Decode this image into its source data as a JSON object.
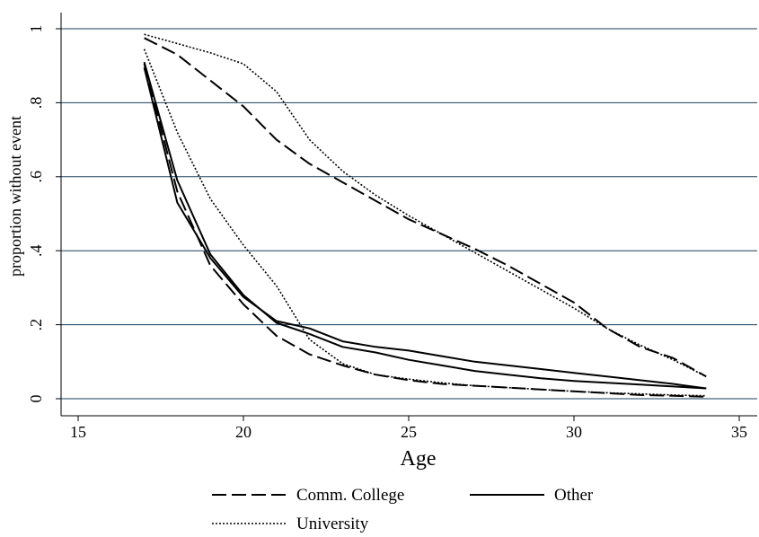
{
  "chart_data": {
    "type": "line",
    "title": "",
    "xlabel": "Age",
    "ylabel": "proportion without event",
    "xlim": [
      15,
      35
    ],
    "ylim": [
      0,
      1
    ],
    "xticks": [
      15,
      20,
      25,
      30,
      35
    ],
    "yticks": [
      0,
      0.2,
      0.4,
      0.6,
      0.8,
      1
    ],
    "xtick_labels": [
      "15",
      "20",
      "25",
      "30",
      "35"
    ],
    "ytick_labels": [
      "0",
      ".2",
      ".4",
      ".6",
      ".8",
      "1"
    ],
    "grid": "horizontal",
    "legend_position": "bottom",
    "series": [
      {
        "name": "Comm. College",
        "style": "dashed",
        "x": [
          17,
          18,
          19,
          20,
          21,
          22,
          23,
          24,
          25,
          26,
          27,
          28,
          29,
          30,
          31,
          32,
          33,
          34
        ],
        "values": [
          0.975,
          0.93,
          0.86,
          0.79,
          0.7,
          0.635,
          0.585,
          0.535,
          0.485,
          0.445,
          0.405,
          0.36,
          0.31,
          0.26,
          0.19,
          0.14,
          0.11,
          0.06
        ]
      },
      {
        "name": "Comm. College",
        "style": "dashed",
        "x": [
          17,
          18,
          19,
          20,
          21,
          22,
          23,
          24,
          25,
          26,
          27,
          28,
          29,
          30,
          31,
          32,
          33,
          34
        ],
        "values": [
          0.905,
          0.56,
          0.36,
          0.255,
          0.17,
          0.12,
          0.09,
          0.065,
          0.05,
          0.04,
          0.035,
          0.03,
          0.025,
          0.02,
          0.015,
          0.01,
          0.008,
          0.005
        ]
      },
      {
        "name": "Other",
        "style": "solid",
        "x": [
          17,
          18,
          19,
          20,
          21,
          22,
          23,
          24,
          25,
          26,
          27,
          28,
          29,
          30,
          31,
          32,
          33,
          34
        ],
        "values": [
          0.895,
          0.53,
          0.38,
          0.275,
          0.21,
          0.19,
          0.155,
          0.14,
          0.13,
          0.115,
          0.1,
          0.09,
          0.08,
          0.07,
          0.06,
          0.05,
          0.04,
          0.028
        ]
      },
      {
        "name": "Other",
        "style": "solid",
        "x": [
          17,
          18,
          19,
          20,
          21,
          22,
          23,
          24,
          25,
          26,
          27,
          28,
          29,
          30,
          31,
          32,
          33,
          34
        ],
        "values": [
          0.91,
          0.59,
          0.39,
          0.28,
          0.205,
          0.175,
          0.14,
          0.125,
          0.105,
          0.09,
          0.075,
          0.065,
          0.055,
          0.048,
          0.043,
          0.038,
          0.033,
          0.028
        ]
      },
      {
        "name": "University",
        "style": "dotted",
        "x": [
          17,
          18,
          19,
          20,
          21,
          22,
          23,
          24,
          25,
          26,
          27,
          28,
          29,
          30,
          31,
          32,
          33,
          34
        ],
        "values": [
          0.985,
          0.96,
          0.935,
          0.905,
          0.83,
          0.7,
          0.615,
          0.55,
          0.495,
          0.445,
          0.395,
          0.345,
          0.295,
          0.245,
          0.19,
          0.145,
          0.105,
          0.06
        ]
      },
      {
        "name": "University",
        "style": "dotted",
        "x": [
          17,
          18,
          19,
          20,
          21,
          22,
          23,
          24,
          25,
          26,
          27,
          28,
          29,
          30,
          31,
          32,
          33,
          34
        ],
        "values": [
          0.945,
          0.72,
          0.54,
          0.415,
          0.305,
          0.16,
          0.095,
          0.065,
          0.053,
          0.043,
          0.035,
          0.03,
          0.025,
          0.02,
          0.016,
          0.013,
          0.01,
          0.008
        ]
      }
    ],
    "legend": [
      {
        "name": "Comm. College",
        "style": "dashed"
      },
      {
        "name": "Other",
        "style": "solid"
      },
      {
        "name": "University",
        "style": "dotted"
      }
    ]
  }
}
